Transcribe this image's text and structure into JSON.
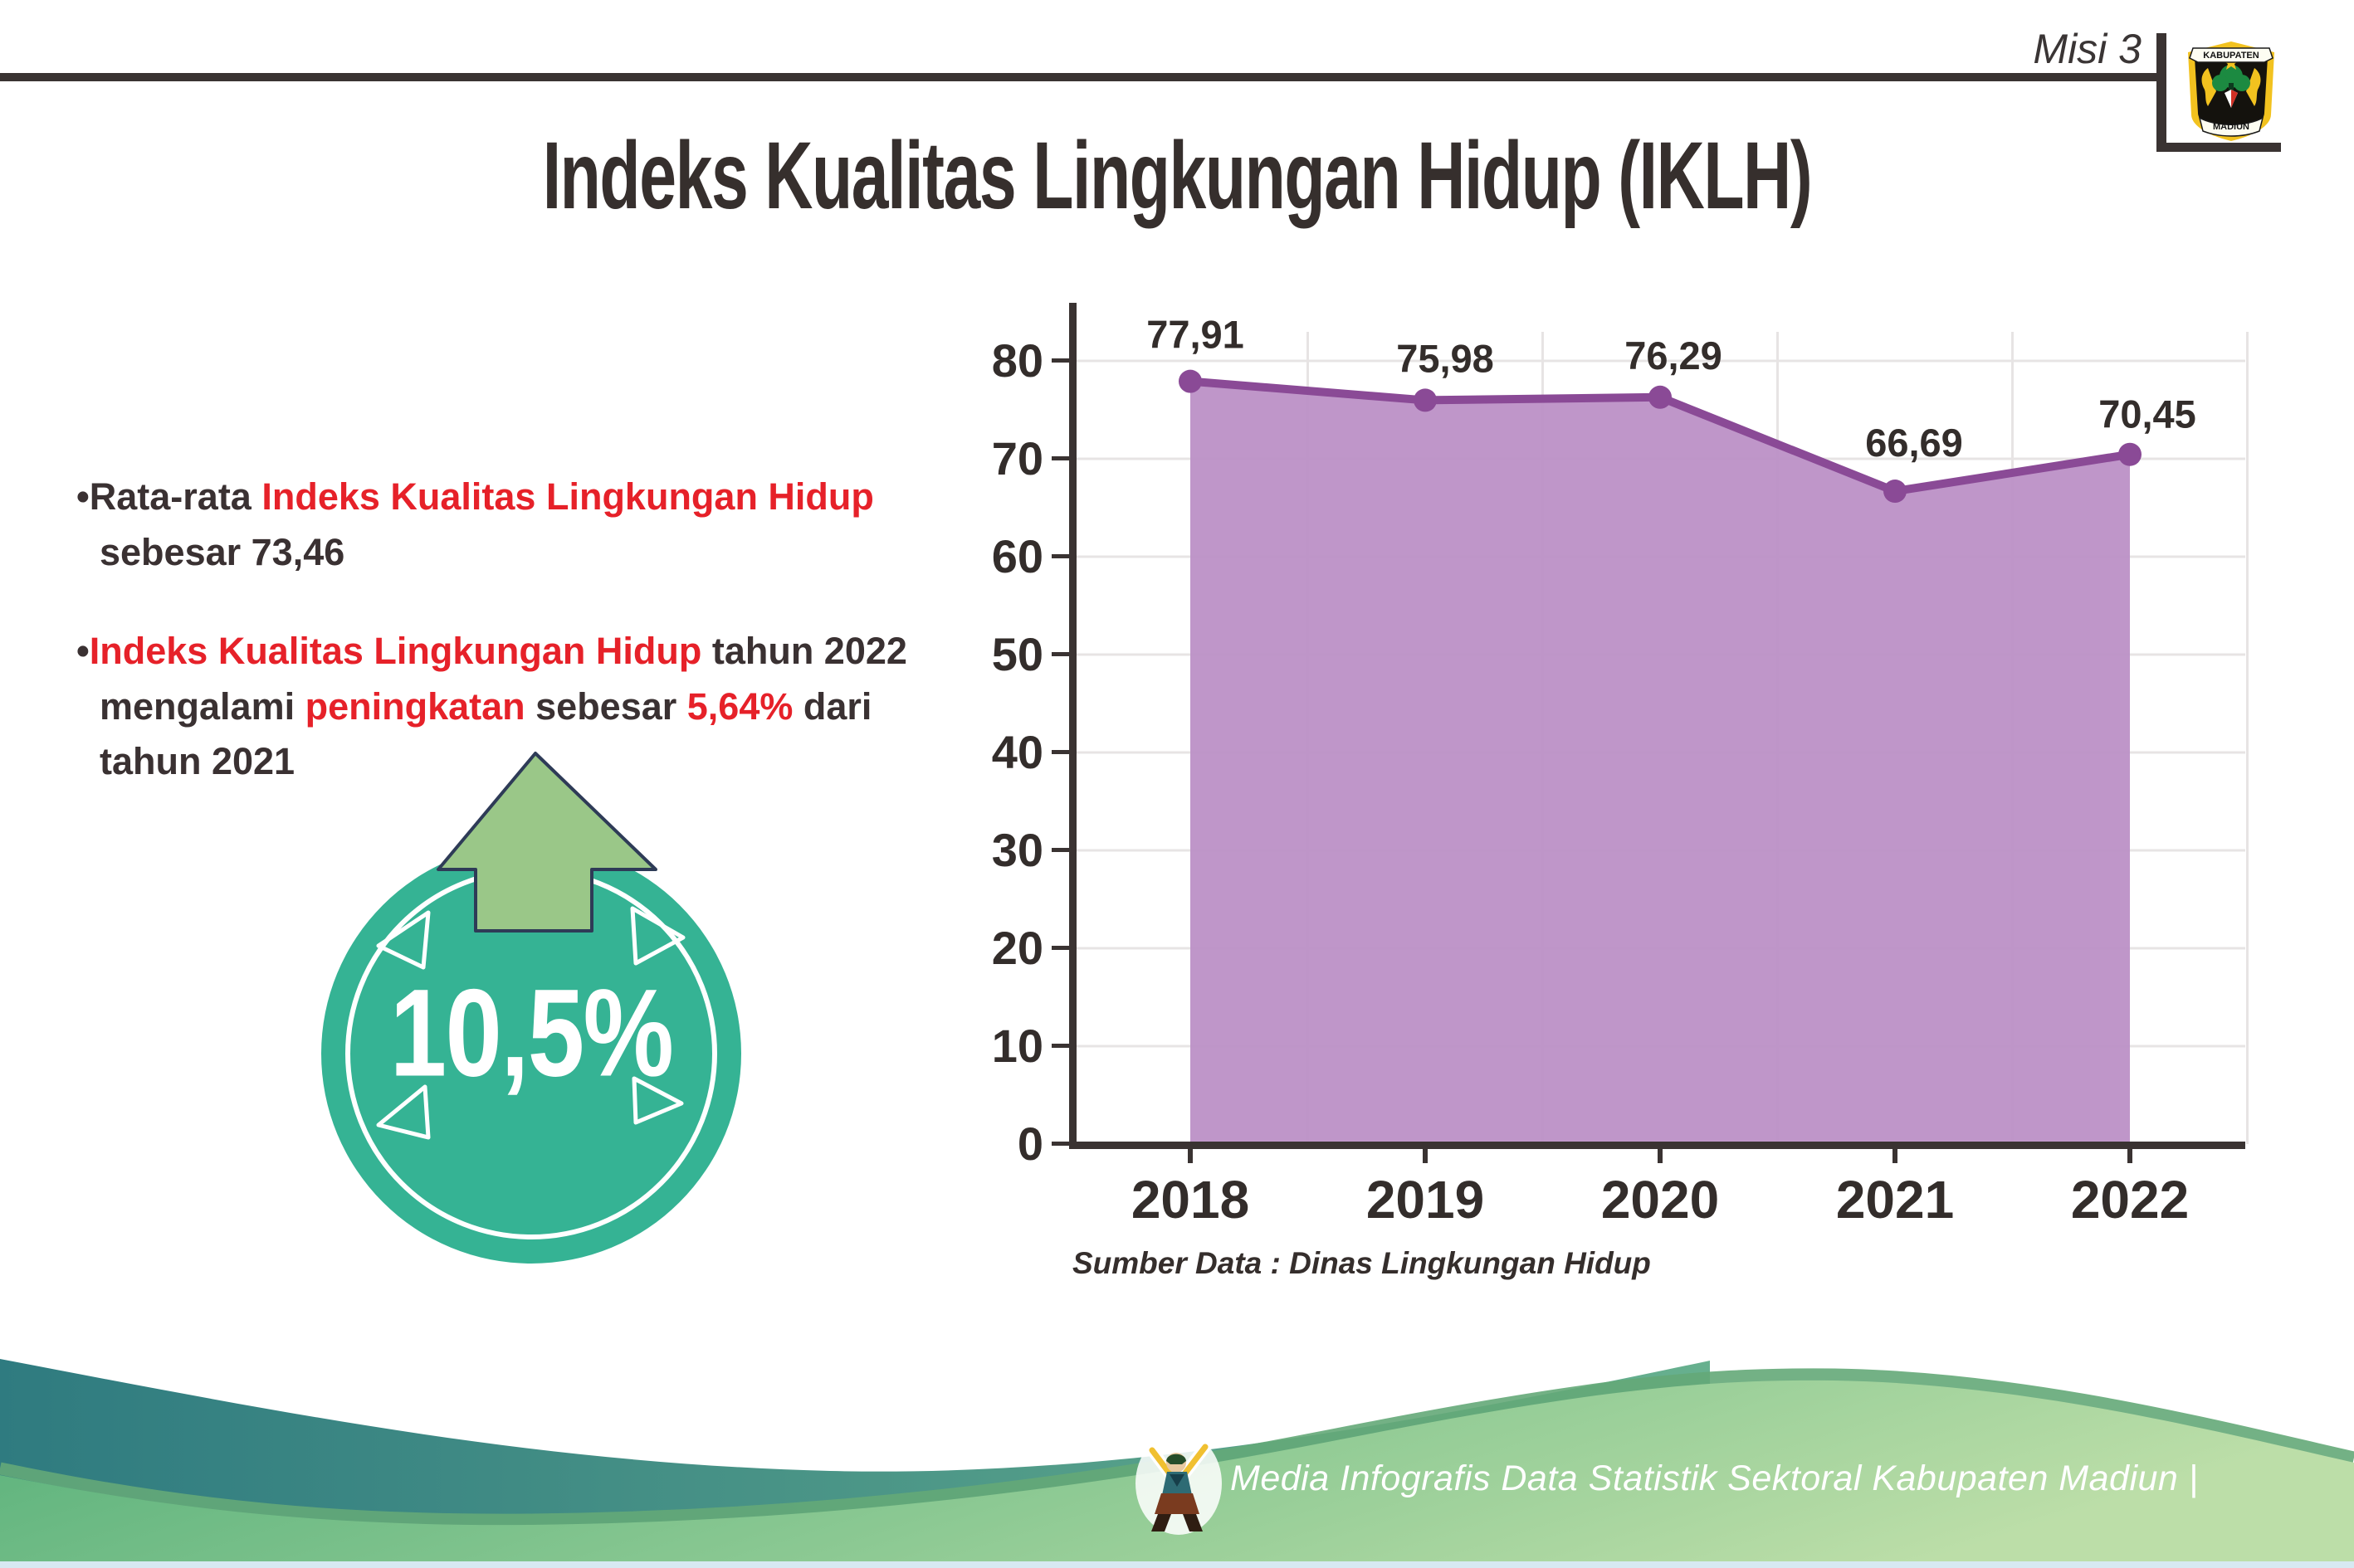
{
  "header": {
    "misi": "Misi 3",
    "title": "Indeks Kualitas Lingkungan Hidup (IKLH)"
  },
  "logo": {
    "top_text": "KABUPATEN",
    "bottom_text": "MADIUN"
  },
  "bullets": [
    {
      "segments": [
        {
          "t": "•Rata-rata ",
          "c": "dark"
        },
        {
          "t": "Indeks Kualitas Lingkungan Hidup",
          "c": "red"
        },
        {
          "t": "\nsebesar 73,46",
          "c": "dark"
        }
      ]
    },
    {
      "segments": [
        {
          "t": "•",
          "c": "dark"
        },
        {
          "t": "Indeks Kualitas Lingkungan Hidup",
          "c": "red"
        },
        {
          "t": " tahun 2022\nmengalami ",
          "c": "dark"
        },
        {
          "t": "peningkatan",
          "c": "red"
        },
        {
          "t": " sebesar ",
          "c": "dark"
        },
        {
          "t": "5,64%",
          "c": "red"
        },
        {
          "t": " dari\ntahun 2021",
          "c": "dark"
        }
      ]
    }
  ],
  "badge": {
    "value": "10,5%",
    "circle_color": "#35b394",
    "arrow_color": "#9ac788"
  },
  "chart_data": {
    "type": "area",
    "title": "",
    "xlabel": "",
    "ylabel": "",
    "categories": [
      "2018",
      "2019",
      "2020",
      "2021",
      "2022"
    ],
    "values": [
      77.91,
      75.98,
      76.29,
      66.69,
      70.45
    ],
    "point_labels": [
      "77,91",
      "75,98",
      "76,29",
      "66,69",
      "70,45"
    ],
    "ylim": [
      0,
      80
    ],
    "yticks": [
      0,
      10,
      20,
      30,
      40,
      50,
      60,
      70,
      80
    ],
    "grid": true,
    "legend": false,
    "source": "Sumber Data : Dinas Lingkungan Hidup",
    "colors": {
      "line": "#8a4a96",
      "fill": "#bc90c6",
      "axis": "#3a3332",
      "gridline": "#e7e4e4",
      "tick_label": "#332d2b"
    }
  },
  "footer": {
    "credit": "Media Infografis Data Statistik Sektoral Kabupaten Madiun |"
  }
}
